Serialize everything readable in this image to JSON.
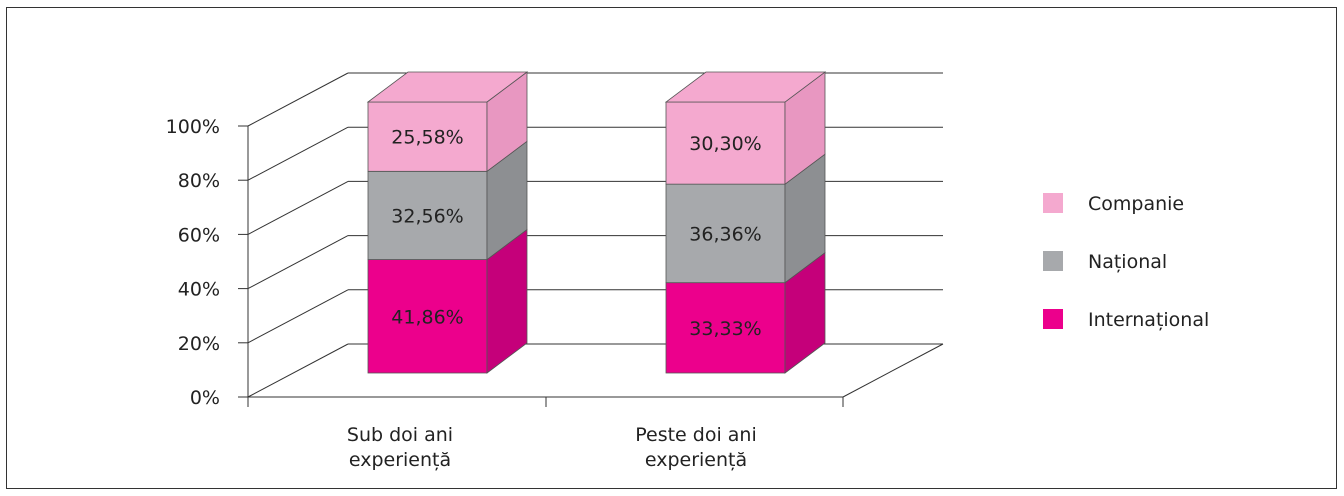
{
  "chart_data": {
    "type": "bar",
    "stacked": true,
    "percent_stacked": true,
    "three_d": true,
    "categories": [
      [
        "Sub doi ani",
        "experiență"
      ],
      [
        "Peste doi ani",
        "experiență"
      ]
    ],
    "y_ticks": [
      "0%",
      "20%",
      "40%",
      "60%",
      "80%",
      "100%"
    ],
    "ylim": [
      0,
      100
    ],
    "grid": true,
    "legend_position": "right",
    "series": [
      {
        "name": "Internațional",
        "color": "#EC008C",
        "values": [
          41.86,
          33.33
        ],
        "labels": [
          "41,86%",
          "33,33%"
        ]
      },
      {
        "name": "Național",
        "color": "#A7A9AC",
        "values": [
          32.56,
          36.36
        ],
        "labels": [
          "32,56%",
          "36,36%"
        ]
      },
      {
        "name": "Companie",
        "color": "#F4A9CF",
        "values": [
          25.58,
          30.3
        ],
        "labels": [
          "25,58%",
          "30,30%"
        ]
      }
    ],
    "legend_order": [
      "Companie",
      "Național",
      "Internațional"
    ]
  }
}
